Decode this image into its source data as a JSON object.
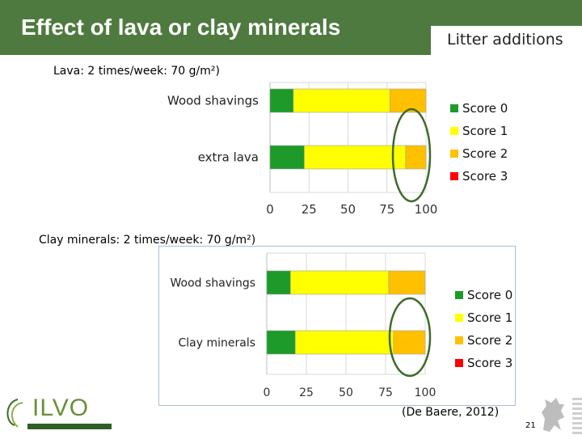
{
  "header": {
    "title": "Effect of lava or clay minerals",
    "tab_label": "Litter additions"
  },
  "captions": {
    "lava": "Lava: 2 times/week: 70 g/m²)",
    "clay": "Clay minerals:  2 times/week: 70 g/m²)"
  },
  "colors": {
    "header": "#4f7a3f",
    "score0": "#1e9a2a",
    "score1": "#ffff00",
    "score2": "#ffc000",
    "score3": "#ff0000",
    "circle": "#3d6b2a"
  },
  "chart_data": [
    {
      "type": "bar",
      "orientation": "horizontal",
      "stacked": true,
      "categories": [
        "Wood shavings",
        "extra lava"
      ],
      "series": [
        {
          "name": "Score 0",
          "values": [
            15,
            22
          ]
        },
        {
          "name": "Score 1",
          "values": [
            62,
            65
          ]
        },
        {
          "name": "Score 2",
          "values": [
            23,
            13
          ]
        },
        {
          "name": "Score 3",
          "values": [
            0,
            0
          ]
        }
      ],
      "xlim": [
        0,
        100
      ],
      "xticks": [
        "0",
        "25",
        "50",
        "75",
        "100"
      ],
      "grid": true,
      "legend": "right"
    },
    {
      "type": "bar",
      "orientation": "horizontal",
      "stacked": true,
      "categories": [
        "Wood shavings",
        "Clay minerals"
      ],
      "series": [
        {
          "name": "Score 0",
          "values": [
            15,
            18
          ]
        },
        {
          "name": "Score 1",
          "values": [
            62,
            62
          ]
        },
        {
          "name": "Score 2",
          "values": [
            23,
            20
          ]
        },
        {
          "name": "Score 3",
          "values": [
            0,
            0
          ]
        }
      ],
      "xlim": [
        0,
        100
      ],
      "xticks": [
        "0",
        "25",
        "50",
        "75",
        "100"
      ],
      "grid": true,
      "legend": "right"
    }
  ],
  "footer": {
    "logo_text": "ILVO",
    "citation": "(De Baere, 2012)",
    "page_number": "21"
  }
}
